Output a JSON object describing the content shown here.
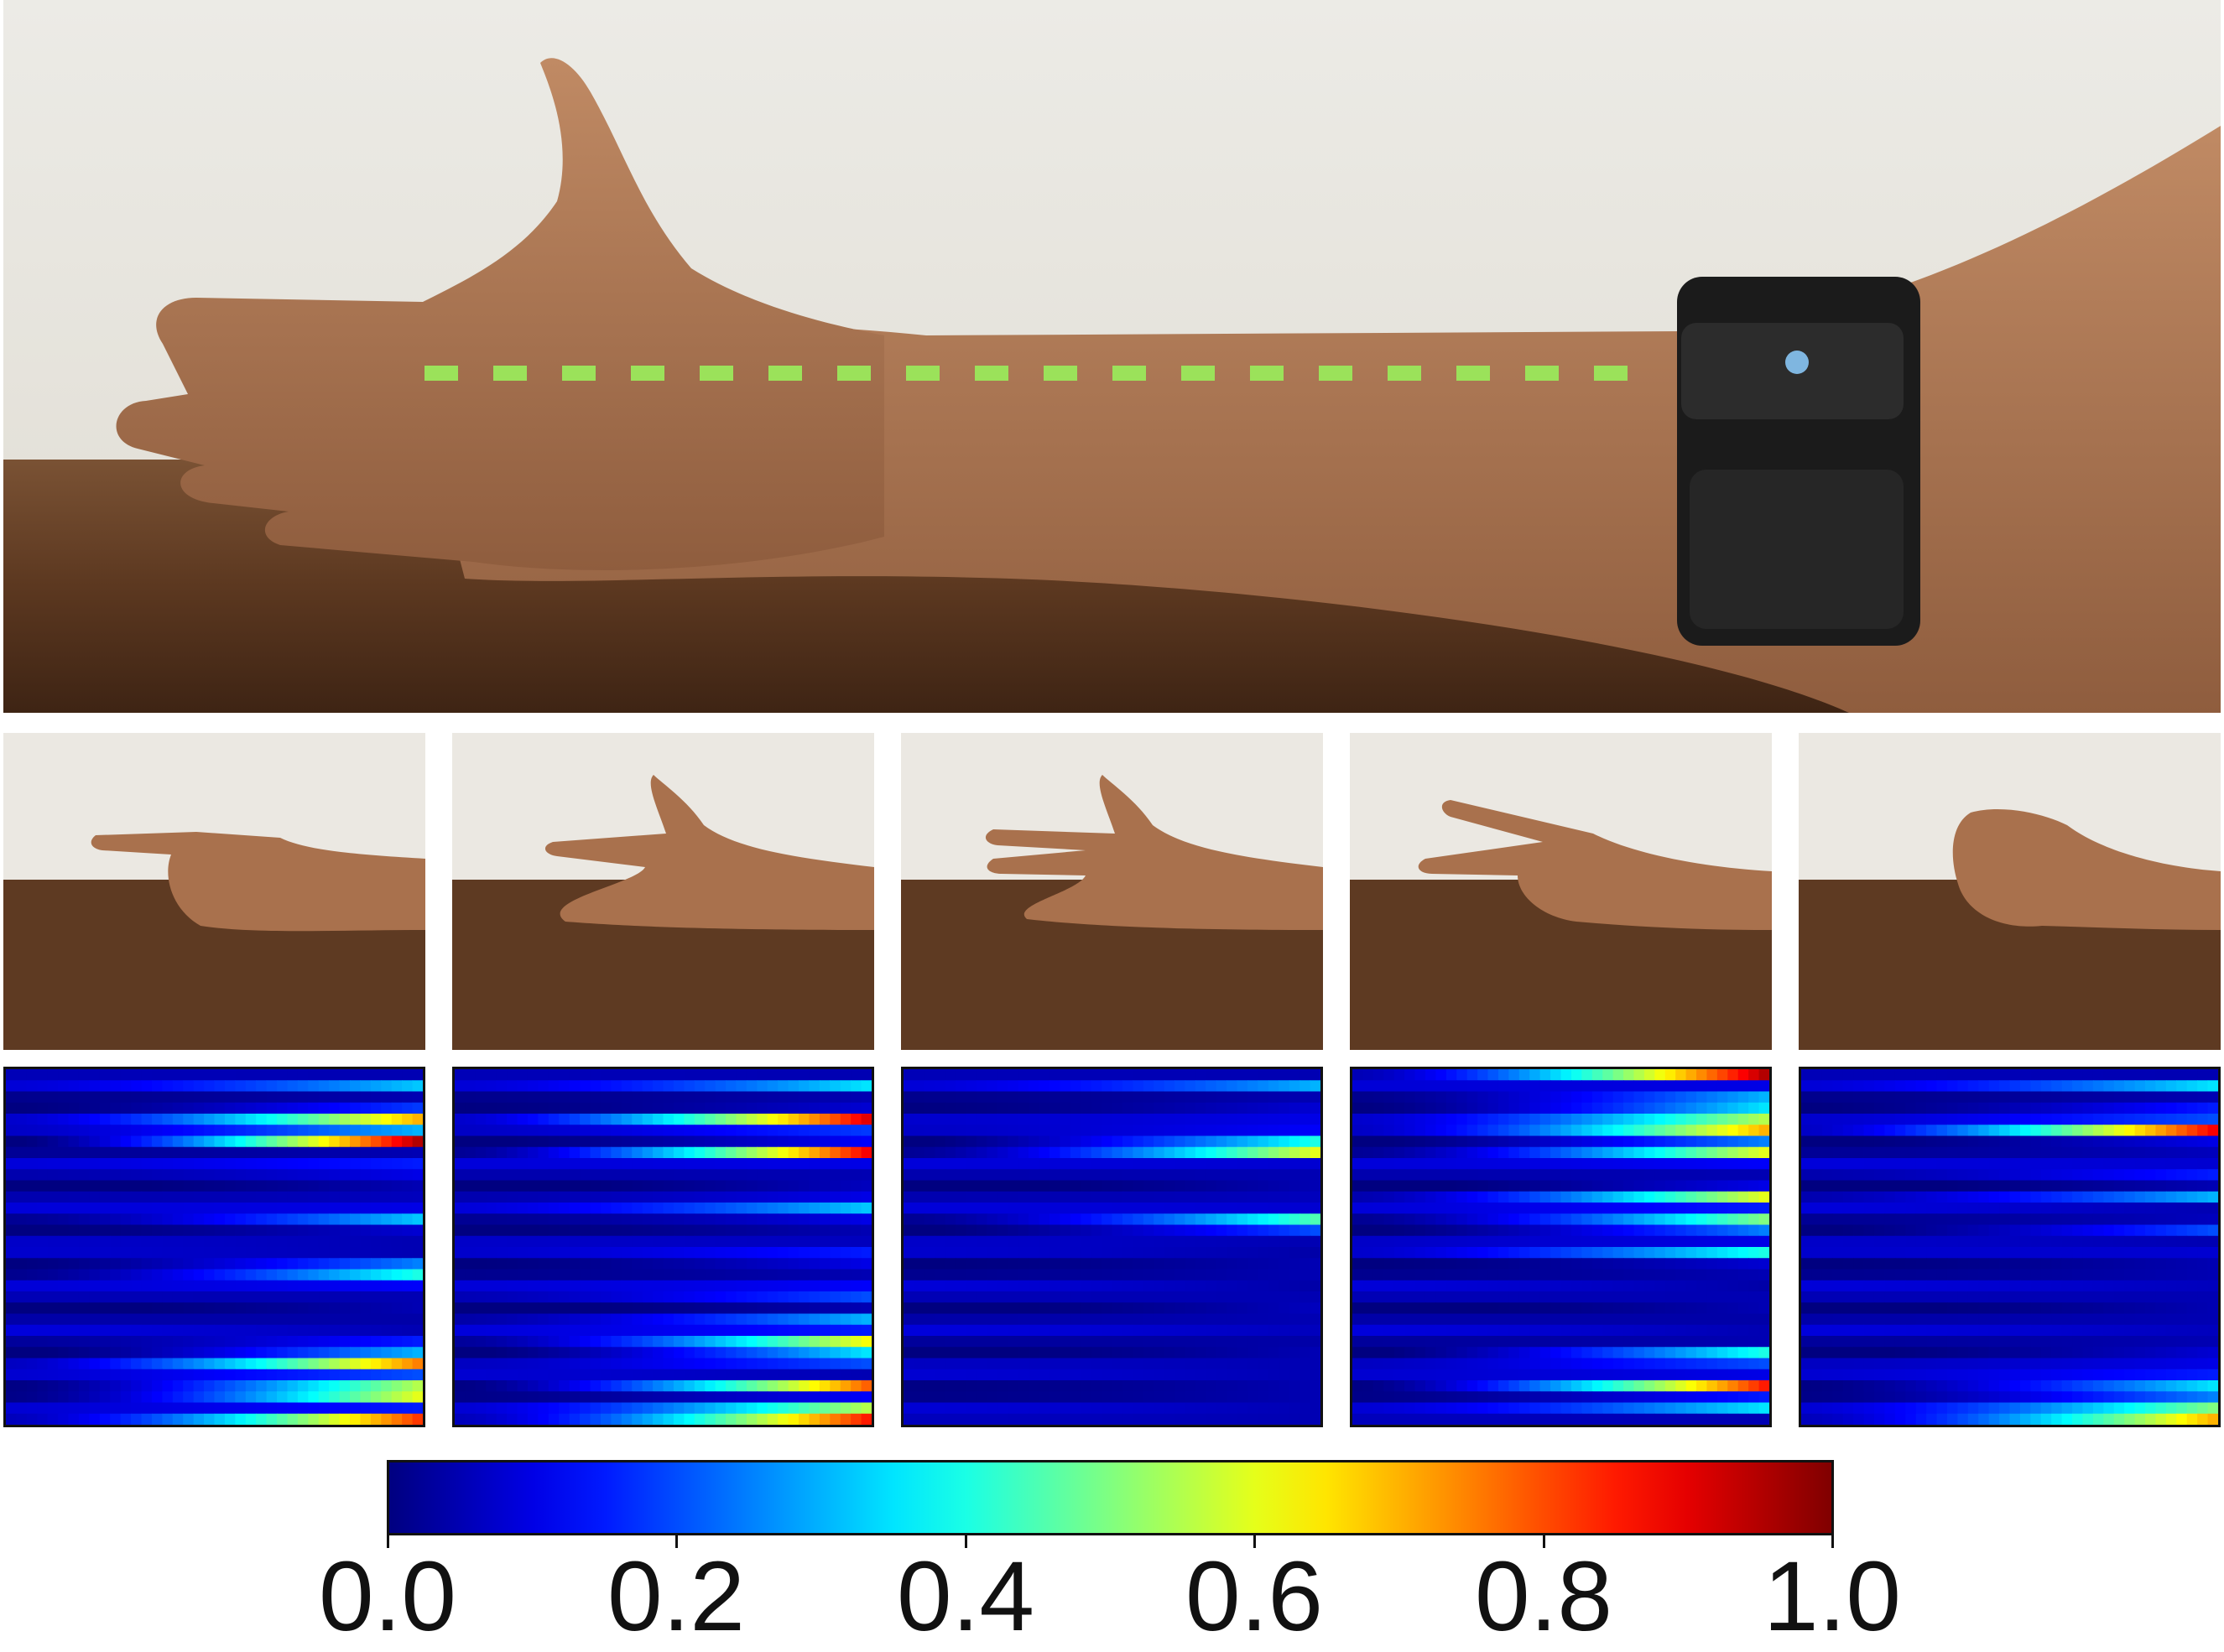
{
  "colors": {
    "wall": "#ebe8e2",
    "table": "#5e3a22",
    "skin": "#b27a55",
    "armband": "#1e1e1e",
    "dash_line": "#9be25a"
  },
  "photos": {
    "main": {
      "subject": "arm-resting-on-table-with-emg-armband"
    },
    "gestures": [
      {
        "gesture": "index-finger-point"
      },
      {
        "gesture": "index-thumb-extended"
      },
      {
        "gesture": "index-middle-thumb-extended"
      },
      {
        "gesture": "index-middle-v"
      },
      {
        "gesture": "fist"
      }
    ]
  },
  "chart_data": {
    "type": "heatmap",
    "colormap": "jet",
    "rows": 32,
    "cols": 40,
    "heatmaps": [
      {
        "row_values": [
          0.05,
          0.32,
          0.05,
          0.18,
          0.7,
          0.3,
          0.95,
          0.05,
          0.15,
          0.1,
          0.05,
          0.06,
          0.1,
          0.32,
          0.08,
          0.05,
          0.05,
          0.25,
          0.4,
          0.12,
          0.05,
          0.05,
          0.04,
          0.05,
          0.15,
          0.3,
          0.75,
          0.2,
          0.55,
          0.6,
          0.15,
          0.82
        ]
      },
      {
        "row_values": [
          0.05,
          0.35,
          0.05,
          0.08,
          0.9,
          0.18,
          0.12,
          0.88,
          0.1,
          0.05,
          0.06,
          0.1,
          0.32,
          0.1,
          0.05,
          0.06,
          0.15,
          0.1,
          0.05,
          0.12,
          0.2,
          0.05,
          0.3,
          0.15,
          0.62,
          0.35,
          0.2,
          0.05,
          0.78,
          0.12,
          0.55,
          0.85
        ]
      },
      {
        "row_values": [
          0.05,
          0.3,
          0.05,
          0.08,
          0.1,
          0.12,
          0.4,
          0.6,
          0.08,
          0.05,
          0.05,
          0.06,
          0.08,
          0.45,
          0.2,
          0.05,
          0.04,
          0.05,
          0.05,
          0.04,
          0.05,
          0.06,
          0.05,
          0.06,
          0.04,
          0.05,
          0.05,
          0.05,
          0.05,
          0.05,
          0.05,
          0.05
        ]
      },
      {
        "row_values": [
          0.95,
          0.1,
          0.3,
          0.35,
          0.55,
          0.7,
          0.25,
          0.6,
          0.12,
          0.05,
          0.1,
          0.6,
          0.15,
          0.5,
          0.25,
          0.1,
          0.4,
          0.08,
          0.05,
          0.04,
          0.05,
          0.05,
          0.04,
          0.05,
          0.05,
          0.4,
          0.2,
          0.1,
          0.85,
          0.15,
          0.35,
          0.05
        ]
      },
      {
        "row_values": [
          0.05,
          0.35,
          0.05,
          0.15,
          0.2,
          0.88,
          0.1,
          0.06,
          0.08,
          0.15,
          0.05,
          0.3,
          0.05,
          0.06,
          0.2,
          0.05,
          0.08,
          0.05,
          0.05,
          0.06,
          0.05,
          0.05,
          0.05,
          0.06,
          0.05,
          0.08,
          0.1,
          0.15,
          0.35,
          0.25,
          0.5,
          0.7
        ]
      }
    ],
    "colorbar": {
      "range": [
        0.0,
        1.0
      ],
      "ticks": [
        "0.0",
        "0.2",
        "0.4",
        "0.6",
        "0.8",
        "1.0"
      ]
    }
  }
}
